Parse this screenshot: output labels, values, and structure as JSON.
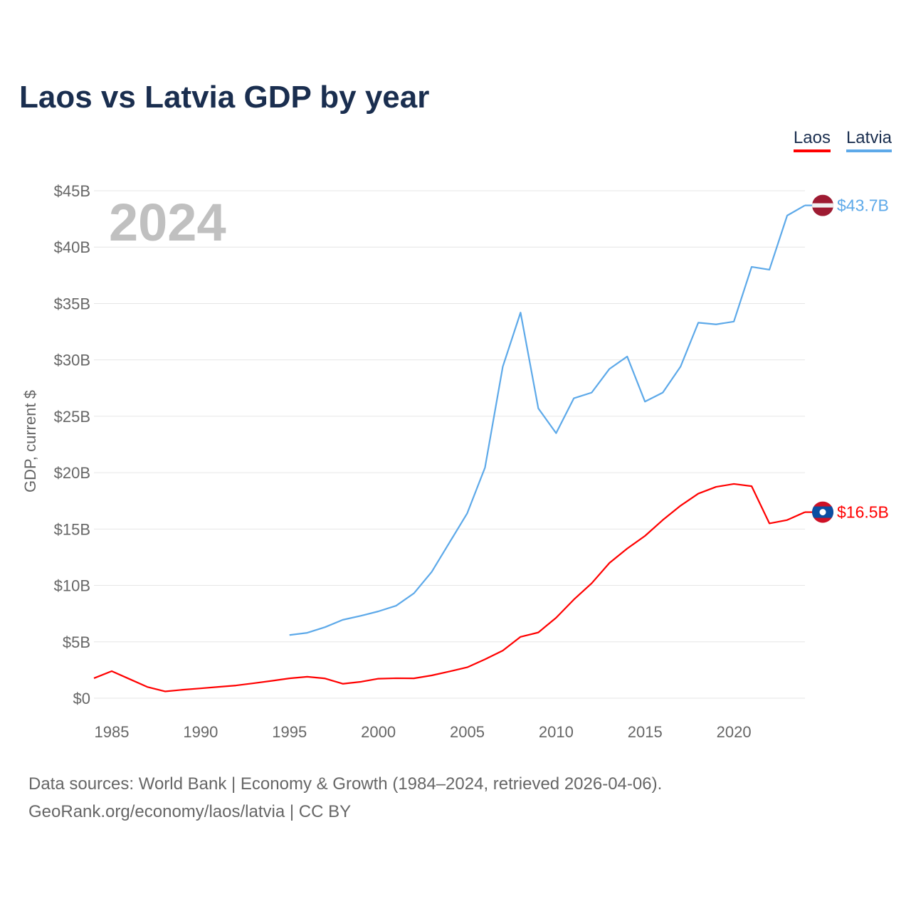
{
  "chart_data": {
    "type": "line",
    "title": "Laos vs Latvia GDP by year",
    "ylabel": "GDP, current $",
    "xlabel": "",
    "year_watermark": "2024",
    "ylim": [
      0,
      45
    ],
    "xlim": [
      1984,
      2024
    ],
    "y_ticks": [
      "$0",
      "$5B",
      "$10B",
      "$15B",
      "$20B",
      "$25B",
      "$30B",
      "$35B",
      "$40B",
      "$45B"
    ],
    "y_tick_values": [
      0,
      5,
      10,
      15,
      20,
      25,
      30,
      35,
      40,
      45
    ],
    "x_ticks": [
      "1985",
      "1990",
      "1995",
      "2000",
      "2005",
      "2010",
      "2015",
      "2020"
    ],
    "x_tick_values": [
      1985,
      1990,
      1995,
      2000,
      2005,
      2010,
      2015,
      2020
    ],
    "grid": true,
    "legend_position": "top-right",
    "series": [
      {
        "name": "Laos",
        "color": "#ff0000",
        "end_label": "$16.5B",
        "flag": "laos-flag",
        "x": [
          1984,
          1985,
          1986,
          1987,
          1988,
          1989,
          1990,
          1991,
          1992,
          1993,
          1994,
          1995,
          1996,
          1997,
          1998,
          1999,
          2000,
          2001,
          2002,
          2003,
          2004,
          2005,
          2006,
          2007,
          2008,
          2009,
          2010,
          2011,
          2012,
          2013,
          2014,
          2015,
          2016,
          2017,
          2018,
          2019,
          2020,
          2021,
          2022,
          2023,
          2024
        ],
        "values": [
          1.77,
          2.4,
          1.7,
          1.0,
          0.6,
          0.75,
          0.87,
          1.0,
          1.13,
          1.33,
          1.54,
          1.76,
          1.9,
          1.75,
          1.28,
          1.45,
          1.73,
          1.77,
          1.76,
          2.02,
          2.37,
          2.74,
          3.45,
          4.22,
          5.44,
          5.83,
          7.13,
          8.75,
          10.19,
          11.99,
          13.27,
          14.39,
          15.8,
          17.07,
          18.14,
          18.74,
          19.0,
          18.8,
          15.5,
          15.8,
          16.5
        ]
      },
      {
        "name": "Latvia",
        "color": "#5da9e9",
        "end_label": "$43.7B",
        "flag": "latvia-flag",
        "x": [
          1995,
          1996,
          1997,
          1998,
          1999,
          2000,
          2001,
          2002,
          2003,
          2004,
          2005,
          2006,
          2007,
          2008,
          2009,
          2010,
          2011,
          2012,
          2013,
          2014,
          2015,
          2016,
          2017,
          2018,
          2019,
          2020,
          2021,
          2022,
          2023,
          2024
        ],
        "values": [
          5.6,
          5.8,
          6.3,
          6.95,
          7.3,
          7.7,
          8.2,
          9.3,
          11.2,
          13.8,
          16.4,
          20.45,
          29.4,
          34.2,
          25.7,
          23.5,
          26.6,
          27.1,
          29.2,
          30.3,
          26.3,
          27.1,
          29.4,
          33.3,
          33.15,
          33.4,
          38.25,
          38.0,
          42.8,
          43.7
        ]
      }
    ]
  },
  "source": {
    "line1": "Data sources: World Bank | Economy & Growth (1984–2024, retrieved 2026-04-06).",
    "line2": "GeoRank.org/economy/laos/latvia | CC BY"
  }
}
